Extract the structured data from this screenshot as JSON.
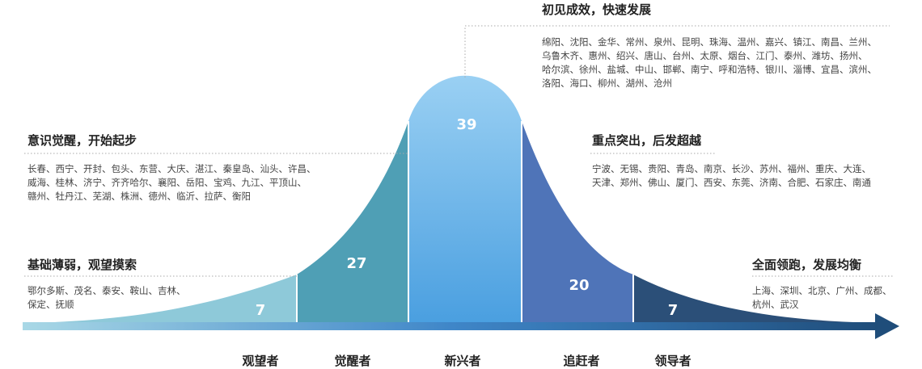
{
  "groups": [
    {
      "key": "watchers",
      "category": "观望者",
      "value": 7,
      "color": "#8ec9d9",
      "title": "基础薄弱，观望摸索",
      "cities": [
        "鄂尔多斯、茂名、泰安、鞍山、吉林、",
        "保定、抚顺"
      ]
    },
    {
      "key": "awakeners",
      "category": "觉醒者",
      "value": 27,
      "color": "#4f9fb5",
      "title": "意识觉醒，开始起步",
      "cities": [
        "长春、西宁、开封、包头、东营、大庆、湛江、秦皇岛、汕头、许昌、",
        "威海、桂林、济宁、齐齐哈尔、襄阳、岳阳、宝鸡、九江、平顶山、",
        "赣州、牡丹江、芜湖、株洲、德州、临沂、拉萨、衡阳"
      ]
    },
    {
      "key": "emerging",
      "category": "新兴者",
      "value": 39,
      "color": "#5aa8e2",
      "title": "初见成效，快速发展",
      "cities": [
        "绵阳、沈阳、金华、常州、泉州、昆明、珠海、温州、嘉兴、镇江、南昌、兰州、",
        "乌鲁木齐、惠州、绍兴、唐山、台州、太原、烟台、江门、泰州、潍坊、扬州、",
        "哈尔滨、徐州、盐城、中山、邯郸、南宁、呼和浩特、银川、淄博、宜昌、滨州、",
        "洛阳、海口、柳州、湖州、沧州"
      ]
    },
    {
      "key": "chasers",
      "category": "追赶者",
      "value": 20,
      "color": "#4f74b8",
      "title": "重点突出，后发超越",
      "cities": [
        "宁波、无锡、贵阳、青岛、南京、长沙、苏州、福州、重庆、大连、",
        "天津、郑州、佛山、厦门、西安、东莞、济南、合肥、石家庄、南通"
      ]
    },
    {
      "key": "leaders",
      "category": "领导者",
      "value": 7,
      "color": "#2b4f78",
      "title": "全面领跑，发展均衡",
      "cities": [
        "上海、深圳、北京、广州、成都、",
        "杭州、武汉"
      ]
    }
  ]
}
